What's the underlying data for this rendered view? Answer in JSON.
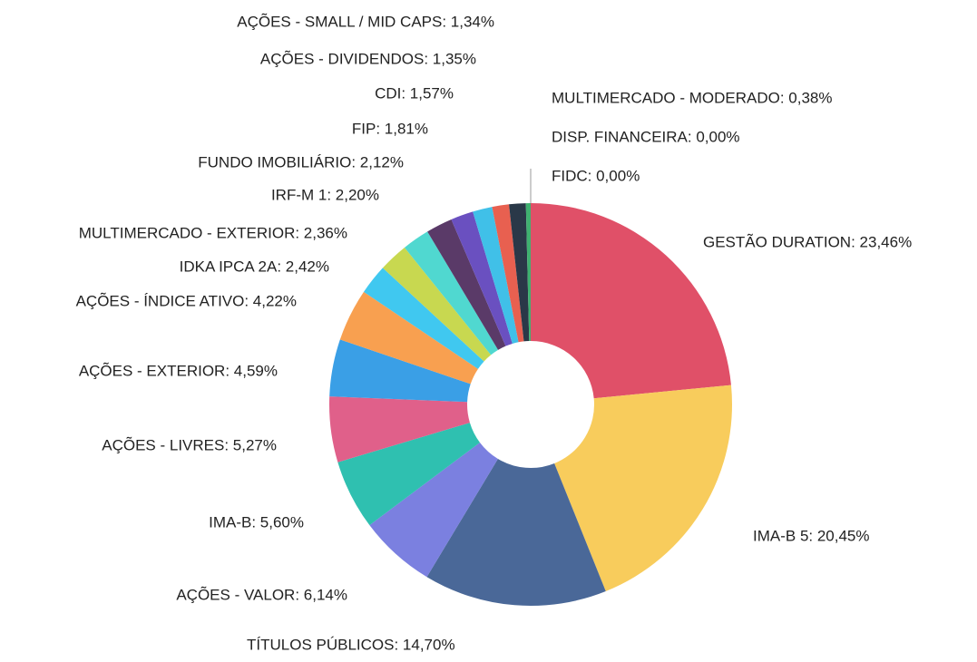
{
  "chart_data": {
    "type": "donut",
    "values": [
      23.46,
      20.45,
      14.7,
      6.14,
      5.6,
      5.27,
      4.59,
      4.22,
      2.42,
      2.36,
      2.2,
      2.12,
      1.81,
      1.57,
      1.35,
      1.34,
      0.38,
      0.0,
      0.0
    ],
    "value_labels": [
      "GESTÃO DURATION: 23,46%",
      "IMA-B 5: 20,45%",
      "TÍTULOS PÚBLICOS: 14,70%",
      "AÇÕES - VALOR: 6,14%",
      "IMA-B: 5,60%",
      "AÇÕES - LIVRES: 5,27%",
      "AÇÕES - EXTERIOR: 4,59%",
      "AÇÕES - ÍNDICE ATIVO: 4,22%",
      "IDKA IPCA 2A: 2,42%",
      "MULTIMERCADO - EXTERIOR: 2,36%",
      "IRF-M 1: 2,20%",
      "FUNDO IMOBILIÁRIO: 2,12%",
      "FIP: 1,81%",
      "CDI: 1,57%",
      "AÇÕES - DIVIDENDOS: 1,35%",
      "AÇÕES - SMALL / MID CAPS: 1,34%",
      "MULTIMERCADO - MODERADO: 0,38%",
      "DISP. FINANCEIRA: 0,00%",
      "FIDC: 0,00%"
    ],
    "colors": [
      "#e05068",
      "#f8cc5c",
      "#4a6898",
      "#7b80e0",
      "#2fc0b0",
      "#e0608a",
      "#3a9fe6",
      "#f8a050",
      "#40c8f0",
      "#c8d850",
      "#50d8d0",
      "#5a3a68",
      "#6a50c0",
      "#40c0e8",
      "#e86050",
      "#2a3848",
      "#40b070",
      "#888888",
      "#999999"
    ]
  }
}
